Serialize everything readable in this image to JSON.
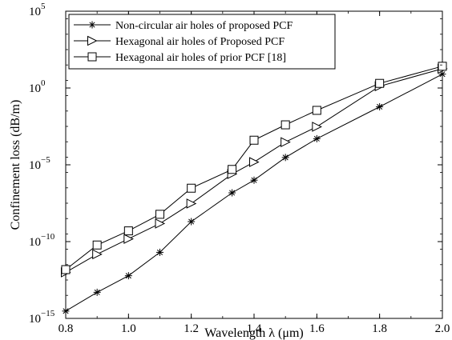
{
  "chart_data": {
    "type": "line",
    "title": "",
    "xlabel": "Wavelength λ (μm)",
    "ylabel": "Confinement loss (dB/m)",
    "xlim": [
      0.8,
      2.0
    ],
    "ylim": [
      1e-15,
      100000.0
    ],
    "yscale": "log",
    "xticks": [
      "0.8",
      "1.0",
      "1.2",
      "1.4",
      "1.6",
      "1.8",
      "2.0"
    ],
    "xtick_values": [
      0.8,
      1.0,
      1.2,
      1.4,
      1.6,
      1.8,
      2.0
    ],
    "yticks": [
      {
        "value": 1e-15,
        "base": "10",
        "exp": "−15"
      },
      {
        "value": 1e-10,
        "base": "10",
        "exp": "−10"
      },
      {
        "value": 1e-05,
        "base": "10",
        "exp": "−5"
      },
      {
        "value": 1,
        "base": "10",
        "exp": "0"
      },
      {
        "value": 100000.0,
        "base": "10",
        "exp": "5"
      }
    ],
    "grid": false,
    "legend_position": "top-left",
    "series": [
      {
        "name": "Non-circular air holes of proposed PCF",
        "marker": "asterisk",
        "x": [
          0.8,
          0.9,
          1.0,
          1.1,
          1.2,
          1.33,
          1.4,
          1.5,
          1.6,
          1.8,
          2.0
        ],
        "y": [
          3e-15,
          5e-14,
          6e-13,
          2e-11,
          2e-09,
          1.5e-07,
          1e-06,
          3e-05,
          0.0005,
          0.06,
          8
        ]
      },
      {
        "name": "Hexagonal air holes of Proposed PCF",
        "marker": "triangle-right",
        "x": [
          0.8,
          0.9,
          1.0,
          1.1,
          1.2,
          1.33,
          1.4,
          1.5,
          1.6,
          1.8,
          2.0
        ],
        "y": [
          1e-12,
          1.5e-11,
          1.5e-10,
          1.5e-09,
          3e-08,
          2.5e-06,
          1.5e-05,
          0.0003,
          0.003,
          1.3,
          18
        ]
      },
      {
        "name": "Hexagonal air holes of prior PCF [18]",
        "marker": "square",
        "x": [
          0.8,
          0.9,
          1.0,
          1.1,
          1.2,
          1.33,
          1.4,
          1.5,
          1.6,
          1.8,
          2.0
        ],
        "y": [
          1.5e-12,
          6e-11,
          5e-10,
          6e-09,
          3e-07,
          5e-06,
          0.0004,
          0.004,
          0.035,
          2,
          26
        ]
      }
    ]
  }
}
